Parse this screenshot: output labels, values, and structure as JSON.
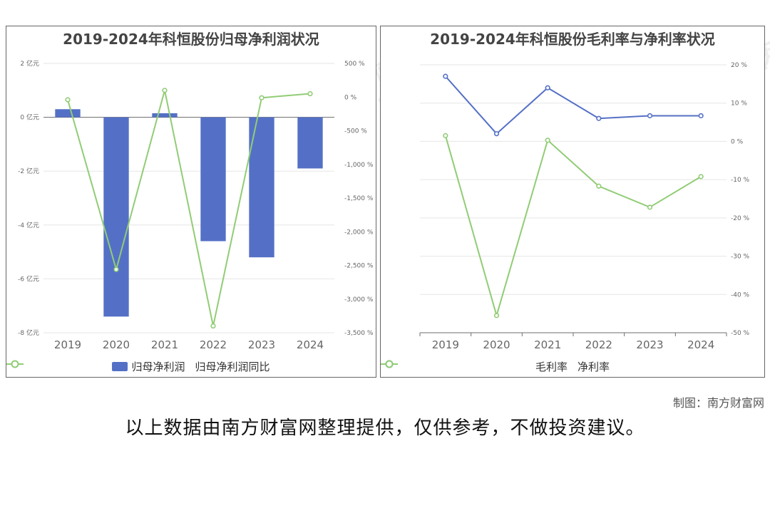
{
  "watermark": {
    "cn": "南方财富网",
    "en": "southmoney.com"
  },
  "credit": "制图：南方财富网",
  "disclaimer": "以上数据由南方财富网整理提供，仅供参考，不做投资建议。",
  "colors": {
    "bar": "#5470c6",
    "green": "#91cc75",
    "blue": "#5470c6",
    "grid": "#e6e6e6",
    "axis": "#6e6e6e"
  },
  "chart_data": [
    {
      "type": "bar",
      "title": "2019-2024年科恒股份归母净利润状况",
      "categories": [
        "2019",
        "2020",
        "2021",
        "2022",
        "2023",
        "2024"
      ],
      "series": [
        {
          "name": "归母净利润",
          "type": "bar",
          "axis": "left",
          "values": [
            0.3,
            -7.4,
            0.15,
            -4.6,
            -5.2,
            -1.9
          ]
        },
        {
          "name": "归母净利润同比",
          "type": "line",
          "axis": "right",
          "values": [
            -40,
            -2560,
            100,
            -3400,
            -10,
            50
          ]
        }
      ],
      "left_axis": {
        "min": -8,
        "max": 2,
        "ticks": [
          2,
          0,
          -2,
          -4,
          -6,
          -8
        ],
        "tick_labels": [
          "2 亿元",
          "0 亿元",
          "-2 亿元",
          "-4 亿元",
          "-6 亿元",
          "-8 亿元"
        ]
      },
      "right_axis": {
        "min": -3500,
        "max": 500,
        "ticks": [
          500,
          0,
          -500,
          -1000,
          -1500,
          -2000,
          -2500,
          -3000,
          -3500
        ],
        "tick_labels": [
          "500 %",
          "0 %",
          "-500 %",
          "-1,000 %",
          "-1,500 %",
          "-2,000 %",
          "-2,500 %",
          "-3,000 %",
          "-3,500 %"
        ]
      },
      "legend": "bottom"
    },
    {
      "type": "line",
      "title": "2019-2024年科恒股份毛利率与净利率状况",
      "categories": [
        "2019",
        "2020",
        "2021",
        "2022",
        "2023",
        "2024"
      ],
      "series": [
        {
          "name": "毛利率",
          "color": "blue",
          "values": [
            17,
            2,
            14,
            6,
            6.7,
            6.7
          ]
        },
        {
          "name": "净利率",
          "color": "green",
          "values": [
            1.5,
            -45.5,
            0.3,
            -11.7,
            -17.2,
            -9.2
          ]
        }
      ],
      "right_axis": {
        "min": -50,
        "max": 20,
        "ticks": [
          20,
          10,
          0,
          -10,
          -20,
          -30,
          -40,
          -50
        ],
        "tick_labels": [
          "20 %",
          "10 %",
          "0 %",
          "-10 %",
          "-20 %",
          "-30 %",
          "-40 %",
          "-50 %"
        ]
      },
      "legend": "bottom"
    }
  ]
}
